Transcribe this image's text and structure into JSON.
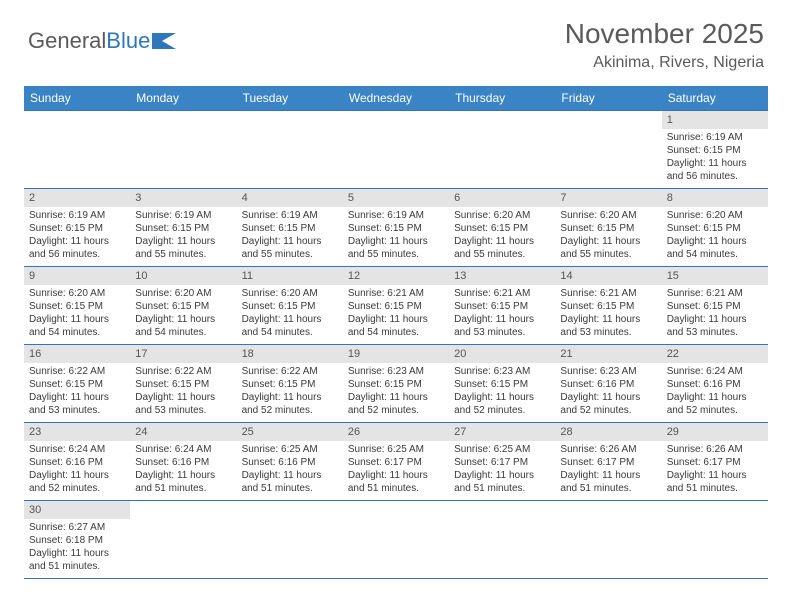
{
  "brand": {
    "part1": "General",
    "part2": "Blue"
  },
  "title": "November 2025",
  "location": "Akinima, Rivers, Nigeria",
  "colors": {
    "header_bg": "#3a83c4",
    "header_text": "#ffffff",
    "cell_border": "#2f77b8",
    "daynum_bg": "#e4e4e4",
    "body_text": "#3a3a3a",
    "title_text": "#5a5a5a"
  },
  "weekdays": [
    "Sunday",
    "Monday",
    "Tuesday",
    "Wednesday",
    "Thursday",
    "Friday",
    "Saturday"
  ],
  "weeks": [
    [
      null,
      null,
      null,
      null,
      null,
      null,
      {
        "n": "1",
        "sr": "Sunrise: 6:19 AM",
        "ss": "Sunset: 6:15 PM",
        "dl": "Daylight: 11 hours and 56 minutes."
      }
    ],
    [
      {
        "n": "2",
        "sr": "Sunrise: 6:19 AM",
        "ss": "Sunset: 6:15 PM",
        "dl": "Daylight: 11 hours and 56 minutes."
      },
      {
        "n": "3",
        "sr": "Sunrise: 6:19 AM",
        "ss": "Sunset: 6:15 PM",
        "dl": "Daylight: 11 hours and 55 minutes."
      },
      {
        "n": "4",
        "sr": "Sunrise: 6:19 AM",
        "ss": "Sunset: 6:15 PM",
        "dl": "Daylight: 11 hours and 55 minutes."
      },
      {
        "n": "5",
        "sr": "Sunrise: 6:19 AM",
        "ss": "Sunset: 6:15 PM",
        "dl": "Daylight: 11 hours and 55 minutes."
      },
      {
        "n": "6",
        "sr": "Sunrise: 6:20 AM",
        "ss": "Sunset: 6:15 PM",
        "dl": "Daylight: 11 hours and 55 minutes."
      },
      {
        "n": "7",
        "sr": "Sunrise: 6:20 AM",
        "ss": "Sunset: 6:15 PM",
        "dl": "Daylight: 11 hours and 55 minutes."
      },
      {
        "n": "8",
        "sr": "Sunrise: 6:20 AM",
        "ss": "Sunset: 6:15 PM",
        "dl": "Daylight: 11 hours and 54 minutes."
      }
    ],
    [
      {
        "n": "9",
        "sr": "Sunrise: 6:20 AM",
        "ss": "Sunset: 6:15 PM",
        "dl": "Daylight: 11 hours and 54 minutes."
      },
      {
        "n": "10",
        "sr": "Sunrise: 6:20 AM",
        "ss": "Sunset: 6:15 PM",
        "dl": "Daylight: 11 hours and 54 minutes."
      },
      {
        "n": "11",
        "sr": "Sunrise: 6:20 AM",
        "ss": "Sunset: 6:15 PM",
        "dl": "Daylight: 11 hours and 54 minutes."
      },
      {
        "n": "12",
        "sr": "Sunrise: 6:21 AM",
        "ss": "Sunset: 6:15 PM",
        "dl": "Daylight: 11 hours and 54 minutes."
      },
      {
        "n": "13",
        "sr": "Sunrise: 6:21 AM",
        "ss": "Sunset: 6:15 PM",
        "dl": "Daylight: 11 hours and 53 minutes."
      },
      {
        "n": "14",
        "sr": "Sunrise: 6:21 AM",
        "ss": "Sunset: 6:15 PM",
        "dl": "Daylight: 11 hours and 53 minutes."
      },
      {
        "n": "15",
        "sr": "Sunrise: 6:21 AM",
        "ss": "Sunset: 6:15 PM",
        "dl": "Daylight: 11 hours and 53 minutes."
      }
    ],
    [
      {
        "n": "16",
        "sr": "Sunrise: 6:22 AM",
        "ss": "Sunset: 6:15 PM",
        "dl": "Daylight: 11 hours and 53 minutes."
      },
      {
        "n": "17",
        "sr": "Sunrise: 6:22 AM",
        "ss": "Sunset: 6:15 PM",
        "dl": "Daylight: 11 hours and 53 minutes."
      },
      {
        "n": "18",
        "sr": "Sunrise: 6:22 AM",
        "ss": "Sunset: 6:15 PM",
        "dl": "Daylight: 11 hours and 52 minutes."
      },
      {
        "n": "19",
        "sr": "Sunrise: 6:23 AM",
        "ss": "Sunset: 6:15 PM",
        "dl": "Daylight: 11 hours and 52 minutes."
      },
      {
        "n": "20",
        "sr": "Sunrise: 6:23 AM",
        "ss": "Sunset: 6:15 PM",
        "dl": "Daylight: 11 hours and 52 minutes."
      },
      {
        "n": "21",
        "sr": "Sunrise: 6:23 AM",
        "ss": "Sunset: 6:16 PM",
        "dl": "Daylight: 11 hours and 52 minutes."
      },
      {
        "n": "22",
        "sr": "Sunrise: 6:24 AM",
        "ss": "Sunset: 6:16 PM",
        "dl": "Daylight: 11 hours and 52 minutes."
      }
    ],
    [
      {
        "n": "23",
        "sr": "Sunrise: 6:24 AM",
        "ss": "Sunset: 6:16 PM",
        "dl": "Daylight: 11 hours and 52 minutes."
      },
      {
        "n": "24",
        "sr": "Sunrise: 6:24 AM",
        "ss": "Sunset: 6:16 PM",
        "dl": "Daylight: 11 hours and 51 minutes."
      },
      {
        "n": "25",
        "sr": "Sunrise: 6:25 AM",
        "ss": "Sunset: 6:16 PM",
        "dl": "Daylight: 11 hours and 51 minutes."
      },
      {
        "n": "26",
        "sr": "Sunrise: 6:25 AM",
        "ss": "Sunset: 6:17 PM",
        "dl": "Daylight: 11 hours and 51 minutes."
      },
      {
        "n": "27",
        "sr": "Sunrise: 6:25 AM",
        "ss": "Sunset: 6:17 PM",
        "dl": "Daylight: 11 hours and 51 minutes."
      },
      {
        "n": "28",
        "sr": "Sunrise: 6:26 AM",
        "ss": "Sunset: 6:17 PM",
        "dl": "Daylight: 11 hours and 51 minutes."
      },
      {
        "n": "29",
        "sr": "Sunrise: 6:26 AM",
        "ss": "Sunset: 6:17 PM",
        "dl": "Daylight: 11 hours and 51 minutes."
      }
    ],
    [
      {
        "n": "30",
        "sr": "Sunrise: 6:27 AM",
        "ss": "Sunset: 6:18 PM",
        "dl": "Daylight: 11 hours and 51 minutes."
      },
      null,
      null,
      null,
      null,
      null,
      null
    ]
  ]
}
